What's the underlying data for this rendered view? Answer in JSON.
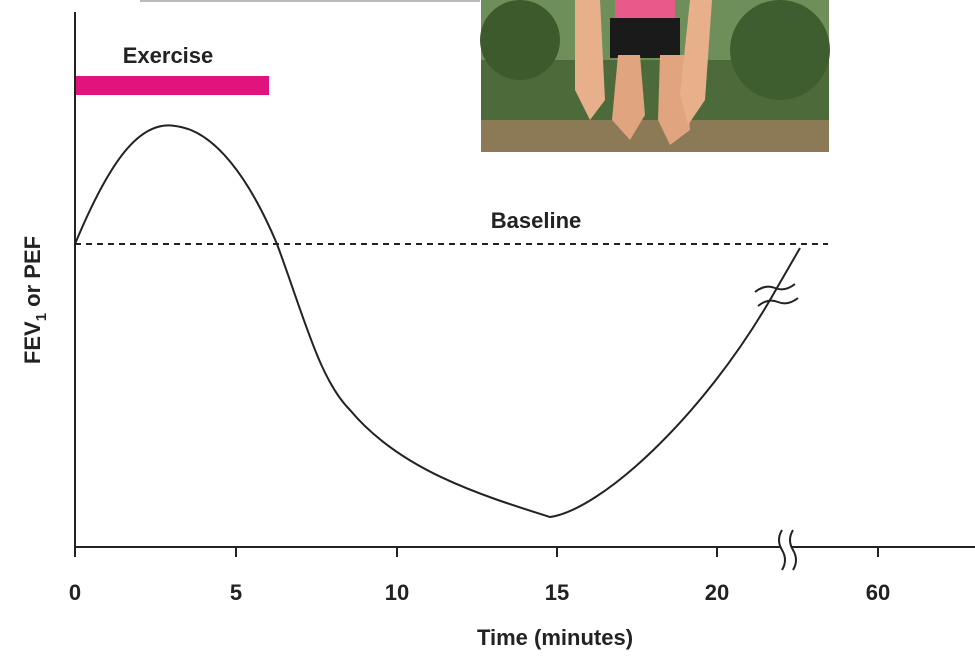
{
  "labels": {
    "exercise": "Exercise",
    "baseline": "Baseline",
    "x_axis": "Time (minutes)"
  },
  "y_axis": {
    "main": "FEV",
    "subscript": "1",
    "rest": " or PEF"
  },
  "x_tick_labels": [
    "0",
    "5",
    "10",
    "15",
    "20",
    "60"
  ]
}
